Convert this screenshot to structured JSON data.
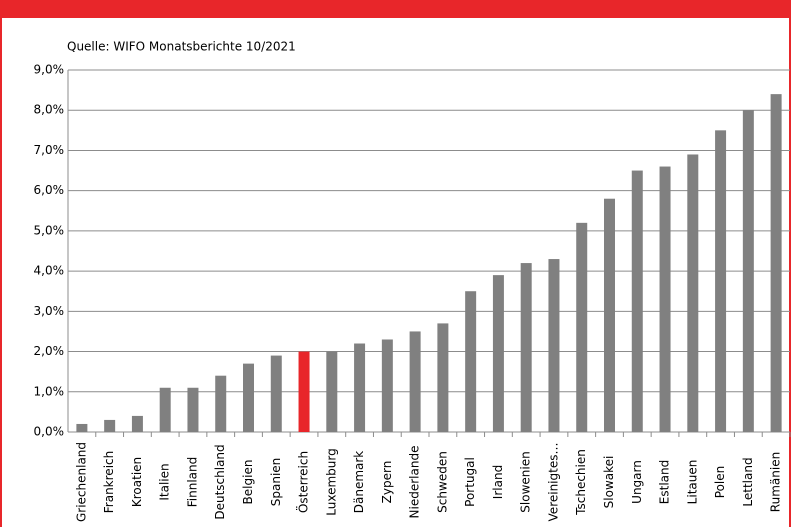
{
  "chart_data": {
    "type": "bar",
    "subtitle": "Quelle: WIFO Monatsberichte 10/2021",
    "categories": [
      "Griechenland",
      "Frankreich",
      "Kroatien",
      "Italien",
      "Finnland",
      "Deutschland",
      "Belgien",
      "Spanien",
      "Österreich",
      "Luxemburg",
      "Dänemark",
      "Zypern",
      "Niederlande",
      "Schweden",
      "Portugal",
      "Irland",
      "Slowenien",
      "Vereinigtes…",
      "Tschechien",
      "Slowakei",
      "Ungarn",
      "Estland",
      "Litauen",
      "Polen",
      "Lettland",
      "Rumänien"
    ],
    "values": [
      0.2,
      0.3,
      0.4,
      1.1,
      1.1,
      1.4,
      1.7,
      1.9,
      2.0,
      2.0,
      2.2,
      2.3,
      2.5,
      2.7,
      3.5,
      3.9,
      4.2,
      4.3,
      5.2,
      5.8,
      6.5,
      6.6,
      6.9,
      7.5,
      8.0,
      8.4
    ],
    "colors": [
      "#808080",
      "#808080",
      "#808080",
      "#808080",
      "#808080",
      "#808080",
      "#808080",
      "#808080",
      "#e8262a",
      "#808080",
      "#808080",
      "#808080",
      "#808080",
      "#808080",
      "#808080",
      "#808080",
      "#808080",
      "#808080",
      "#808080",
      "#808080",
      "#808080",
      "#808080",
      "#808080",
      "#808080",
      "#808080",
      "#808080"
    ],
    "ylim": [
      0,
      9
    ],
    "yticks": [
      {
        "value": 0,
        "label": "0,0%"
      },
      {
        "value": 1,
        "label": "1,0%"
      },
      {
        "value": 2,
        "label": "2,0%"
      },
      {
        "value": 3,
        "label": "3,0%"
      },
      {
        "value": 4,
        "label": "4,0%"
      },
      {
        "value": 5,
        "label": "5,0%"
      },
      {
        "value": 6,
        "label": "6,0%"
      },
      {
        "value": 7,
        "label": "7,0%"
      },
      {
        "value": 8,
        "label": "8,0%"
      },
      {
        "value": 9,
        "label": "9,0%"
      }
    ],
    "grid": true
  }
}
